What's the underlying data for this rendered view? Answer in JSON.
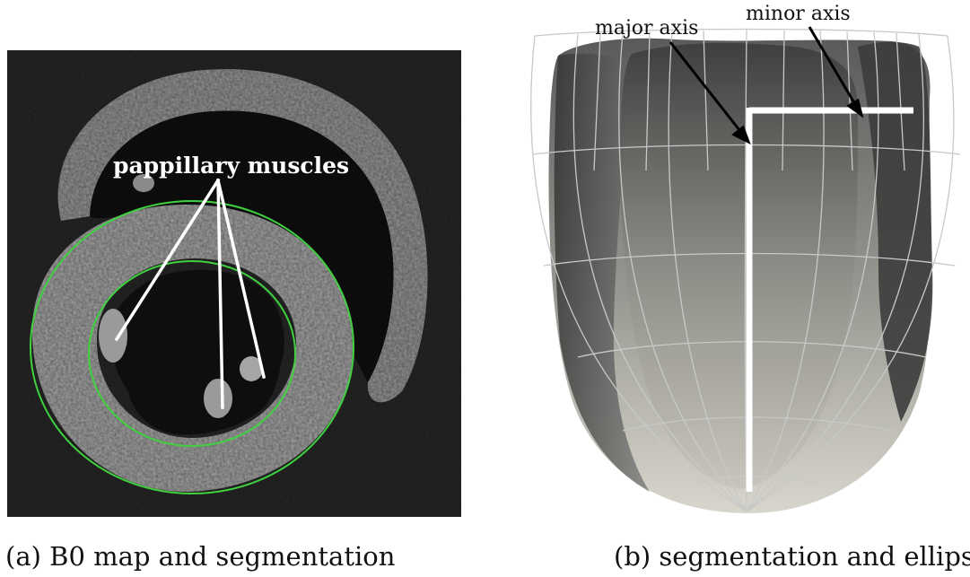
{
  "panel_a": {
    "annotation": "pappillary muscles",
    "caption": "(a) B0 map and segmentation",
    "contour_color": "#3fd13f",
    "label_color": "#ffffff"
  },
  "panel_b": {
    "major_label": "major axis",
    "minor_label": "minor axis",
    "caption": "(b) segmentation and ellipsoid",
    "axis_color": "#ffffff",
    "mesh_color": "#c8c8c8"
  }
}
